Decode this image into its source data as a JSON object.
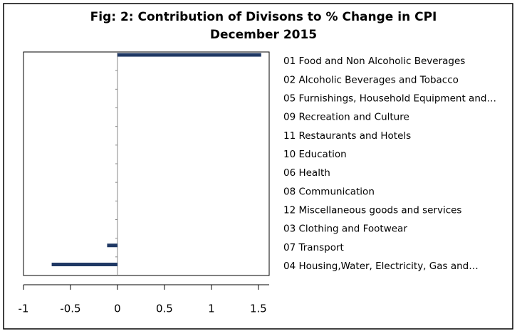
{
  "chart_data": {
    "type": "bar",
    "orientation": "horizontal",
    "title": "Fig: 2: Contribution of Divisons to % Change in CPI",
    "subtitle": "December 2015",
    "categories": [
      "01 Food and Non Alcoholic Beverages",
      "02 Alcoholic Beverages and Tobacco",
      "05 Furnishings, Household Equipment and…",
      "09 Recreation and Culture",
      "11 Restaurants and Hotels",
      "10 Education",
      "06 Health",
      "08 Communication",
      "12 Miscellaneous goods and services",
      "03 Clothing and Footwear",
      "07 Transport",
      "04 Housing,Water, Electricity, Gas and…"
    ],
    "values": [
      1.53,
      0,
      0,
      0,
      0,
      0,
      0,
      0,
      0,
      0,
      -0.11,
      -0.7
    ],
    "color": "#1f3864",
    "xlim": [
      -1,
      1.6
    ],
    "xticks": [
      -1,
      -0.5,
      0,
      0.5,
      1,
      1.5
    ]
  }
}
